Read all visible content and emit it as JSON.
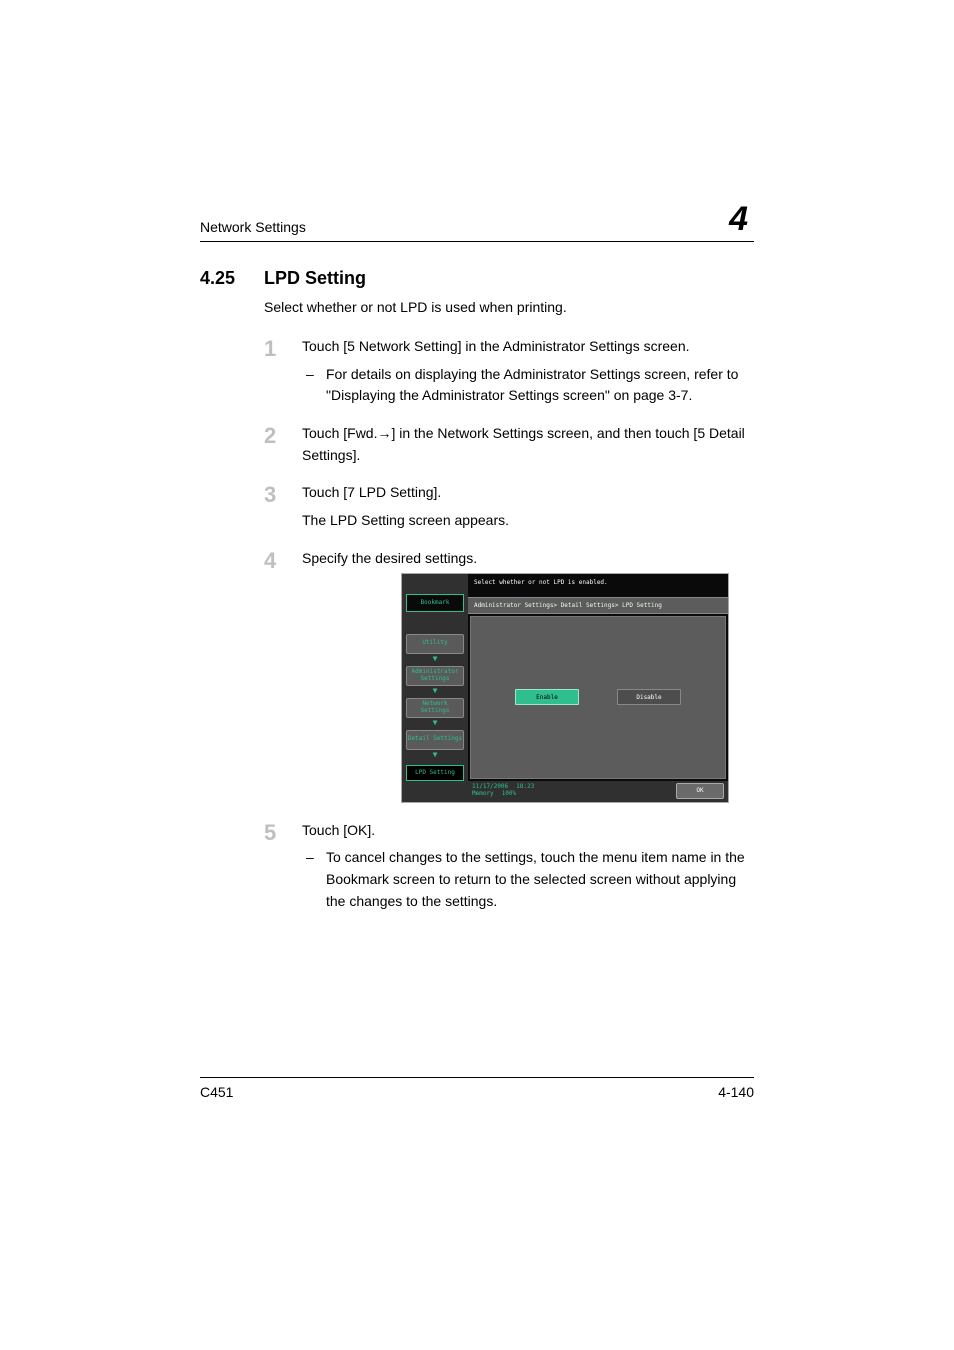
{
  "header": {
    "running_title": "Network Settings",
    "chapter_number": "4"
  },
  "section": {
    "number": "4.25",
    "title": "LPD Setting",
    "intro": "Select whether or not LPD is used when printing."
  },
  "steps": [
    {
      "text": "Touch [5 Network Setting] in the Administrator Settings screen.",
      "sub": [
        "For details on displaying the Administrator Settings screen, refer to \"Displaying the Administrator Settings screen\" on page 3-7."
      ]
    },
    {
      "text": "Touch [Fwd.→] in the Network Settings screen, and then touch [5 Detail Settings]."
    },
    {
      "text": "Touch [7 LPD Setting].",
      "extra": "The LPD Setting screen appears."
    },
    {
      "text": "Specify the desired settings."
    },
    {
      "text": "Touch [OK].",
      "sub": [
        "To cancel changes to the settings, touch the menu item name in the Bookmark screen to return to the selected screen without applying the changes to the settings."
      ]
    }
  ],
  "device": {
    "instruction": "Select whether or not LPD is enabled.",
    "bookmark_label": "Bookmark",
    "nav": [
      "Utility",
      "Administrator Settings",
      "Network Settings",
      "Detail Settings"
    ],
    "current": "LPD Setting",
    "breadcrumb": "Administrator Settings> Detail Settings> LPD Setting",
    "enable_label": "Enable",
    "disable_label": "Disable",
    "date": "11/17/2006",
    "time": "18:23",
    "memory_label": "Memory",
    "memory_value": "100%",
    "ok_label": "OK",
    "colors": {
      "accent": "#2fbf8f",
      "panel": "#5c5c5c",
      "dark": "#0a0a0a",
      "frame": "#303030"
    }
  },
  "footer": {
    "model": "C451",
    "page": "4-140"
  }
}
